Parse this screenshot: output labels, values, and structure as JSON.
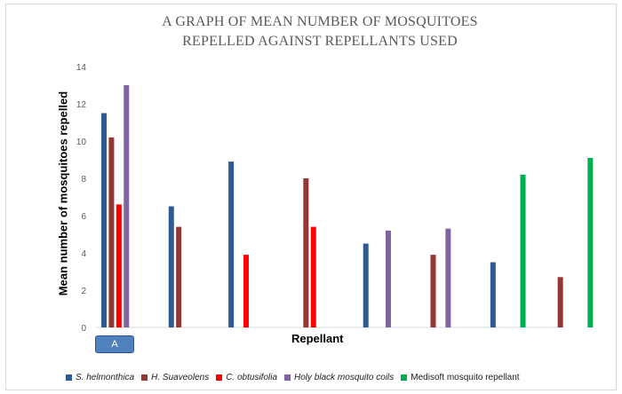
{
  "chart_data": {
    "type": "bar",
    "title_line1": "A GRAPH OF  MEAN NUMBER OF MOSQUITOES",
    "title_line2": "REPELLED AGAINST REPELLANTS USED",
    "ylabel": "Mean number of mosquitoes repelled",
    "xlabel": "Repellant",
    "ylim": [
      0,
      14
    ],
    "yticks": [
      "0",
      "2",
      "4",
      "6",
      "8",
      "10",
      "12",
      "14"
    ],
    "grid": false,
    "legend_position": "bottom",
    "group_label": "A",
    "series": [
      {
        "name": "S. helmonthica",
        "color": "#2e5b8f"
      },
      {
        "name": "H.  Suaveolens",
        "color": "#943634"
      },
      {
        "name": "C. obtusifolia",
        "color": "#ff0000"
      },
      {
        "name": "Holy black mosquito coils",
        "color": "#8064a2"
      },
      {
        "name": "Medisoft mosquito repellant",
        "color": "#00b050"
      }
    ],
    "bars": [
      {
        "series": 0,
        "value": 11.5,
        "slot": 0
      },
      {
        "series": 1,
        "value": 10.2,
        "slot": 1
      },
      {
        "series": 2,
        "value": 6.6,
        "slot": 2
      },
      {
        "series": 3,
        "value": 13.0,
        "slot": 3
      },
      {
        "series": 0,
        "value": 6.5,
        "slot": 9
      },
      {
        "series": 1,
        "value": 5.4,
        "slot": 10
      },
      {
        "series": 0,
        "value": 8.9,
        "slot": 17
      },
      {
        "series": 2,
        "value": 3.9,
        "slot": 19
      },
      {
        "series": 1,
        "value": 8.0,
        "slot": 27
      },
      {
        "series": 2,
        "value": 5.4,
        "slot": 28
      },
      {
        "series": 0,
        "value": 4.5,
        "slot": 35
      },
      {
        "series": 3,
        "value": 5.2,
        "slot": 38
      },
      {
        "series": 1,
        "value": 3.9,
        "slot": 44
      },
      {
        "series": 3,
        "value": 5.3,
        "slot": 46
      },
      {
        "series": 0,
        "value": 3.5,
        "slot": 52
      },
      {
        "series": 4,
        "value": 8.2,
        "slot": 56
      },
      {
        "series": 1,
        "value": 2.7,
        "slot": 61
      },
      {
        "series": 4,
        "value": 9.1,
        "slot": 65
      }
    ]
  }
}
